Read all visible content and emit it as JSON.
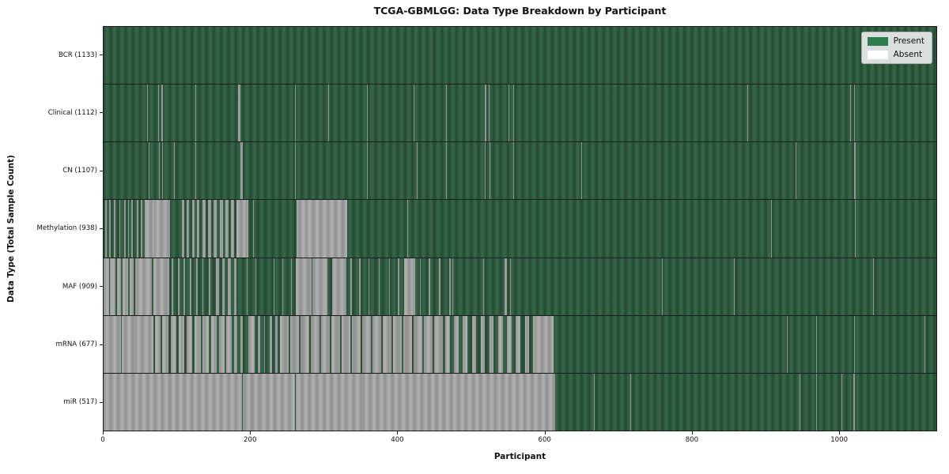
{
  "chart_data": {
    "type": "heatmap",
    "title": "TCGA-GBMLGG: Data Type Breakdown by Participant",
    "xlabel": "Participant",
    "ylabel": "Data Type (Total Sample Count)",
    "x_ticks": [
      0,
      200,
      400,
      600,
      800,
      1000
    ],
    "x_max": 1133,
    "n_participants": 1133,
    "grid": false,
    "colors": {
      "present": "#2e7d50",
      "absent": "#ffffff"
    },
    "legend": {
      "position": "upper right",
      "items": [
        {
          "label": "Present",
          "color": "#2e7d50"
        },
        {
          "label": "Absent",
          "color": "#ffffff"
        }
      ]
    },
    "rows": [
      {
        "name": "BCR",
        "label": "BCR (1133)",
        "present_count": 1133,
        "absent_ranges": []
      },
      {
        "name": "Clinical",
        "label": "Clinical (1112)",
        "present_count": 1112,
        "absent_ranges": [
          [
            59,
            60
          ],
          [
            74,
            75
          ],
          [
            79,
            81
          ],
          [
            92,
            93
          ],
          [
            125,
            126
          ],
          [
            183,
            186
          ],
          [
            260,
            261
          ],
          [
            306,
            307
          ],
          [
            358,
            359
          ],
          [
            422,
            423
          ],
          [
            466,
            467
          ],
          [
            519,
            521
          ],
          [
            524,
            525
          ],
          [
            551,
            552
          ],
          [
            557,
            558
          ],
          [
            616,
            617
          ],
          [
            876,
            877
          ],
          [
            941,
            942
          ],
          [
            1016,
            1017
          ],
          [
            1021,
            1022
          ]
        ]
      },
      {
        "name": "CN",
        "label": "CN (1107)",
        "present_count": 1107,
        "absent_ranges": [
          [
            61,
            62
          ],
          [
            75,
            76
          ],
          [
            80,
            81
          ],
          [
            96,
            97
          ],
          [
            125,
            126
          ],
          [
            186,
            189
          ],
          [
            260,
            261
          ],
          [
            304,
            305
          ],
          [
            358,
            359
          ],
          [
            426,
            427
          ],
          [
            466,
            467
          ],
          [
            519,
            520
          ],
          [
            525,
            526
          ],
          [
            557,
            558
          ],
          [
            650,
            651
          ],
          [
            942,
            943
          ],
          [
            1021,
            1023
          ]
        ]
      },
      {
        "name": "Methylation",
        "label": "Methylation (938)",
        "present_count": 938,
        "absent_ranges": [
          [
            2,
            4
          ],
          [
            8,
            10
          ],
          [
            14,
            16
          ],
          [
            21,
            23
          ],
          [
            28,
            30
          ],
          [
            33,
            34
          ],
          [
            38,
            40
          ],
          [
            45,
            47
          ],
          [
            51,
            53
          ],
          [
            56,
            90
          ],
          [
            106,
            110
          ],
          [
            113,
            116
          ],
          [
            120,
            124
          ],
          [
            127,
            130
          ],
          [
            134,
            139
          ],
          [
            142,
            146
          ],
          [
            150,
            154
          ],
          [
            158,
            163
          ],
          [
            166,
            170
          ],
          [
            173,
            178
          ],
          [
            181,
            197
          ],
          [
            203,
            204
          ],
          [
            247,
            248
          ],
          [
            262,
            331
          ],
          [
            413,
            414
          ],
          [
            908,
            909
          ],
          [
            1022,
            1023
          ]
        ]
      },
      {
        "name": "MAF",
        "label": "MAF (909)",
        "present_count": 909,
        "absent_ranges": [
          [
            0,
            7
          ],
          [
            9,
            16
          ],
          [
            18,
            24
          ],
          [
            26,
            33
          ],
          [
            35,
            41
          ],
          [
            43,
            66
          ],
          [
            68,
            89
          ],
          [
            93,
            95
          ],
          [
            101,
            103
          ],
          [
            109,
            111
          ],
          [
            117,
            119
          ],
          [
            126,
            128
          ],
          [
            134,
            136
          ],
          [
            143,
            145
          ],
          [
            153,
            157
          ],
          [
            161,
            165
          ],
          [
            169,
            173
          ],
          [
            177,
            181
          ],
          [
            195,
            196
          ],
          [
            207,
            208
          ],
          [
            219,
            220
          ],
          [
            231,
            232
          ],
          [
            243,
            244
          ],
          [
            255,
            256
          ],
          [
            261,
            283
          ],
          [
            284,
            305
          ],
          [
            311,
            330
          ],
          [
            336,
            338
          ],
          [
            348,
            350
          ],
          [
            360,
            362
          ],
          [
            374,
            376
          ],
          [
            388,
            390
          ],
          [
            400,
            402
          ],
          [
            409,
            424
          ],
          [
            430,
            432
          ],
          [
            442,
            444
          ],
          [
            456,
            458
          ],
          [
            470,
            472
          ],
          [
            474,
            476
          ],
          [
            517,
            518
          ],
          [
            530,
            531
          ],
          [
            545,
            549
          ],
          [
            553,
            554
          ],
          [
            760,
            761
          ],
          [
            858,
            859
          ],
          [
            1047,
            1048
          ]
        ]
      },
      {
        "name": "mRNA",
        "label": "mRNA (677)",
        "present_count": 677,
        "absent_ranges": [
          [
            0,
            24
          ],
          [
            25,
            68
          ],
          [
            70,
            78
          ],
          [
            80,
            88
          ],
          [
            91,
            99
          ],
          [
            102,
            110
          ],
          [
            113,
            121
          ],
          [
            124,
            132
          ],
          [
            135,
            143
          ],
          [
            146,
            154
          ],
          [
            157,
            165
          ],
          [
            167,
            174
          ],
          [
            178,
            182
          ],
          [
            186,
            189
          ],
          [
            197,
            206
          ],
          [
            210,
            213
          ],
          [
            218,
            220
          ],
          [
            226,
            229
          ],
          [
            234,
            237
          ],
          [
            240,
            252
          ],
          [
            254,
            266
          ],
          [
            268,
            280
          ],
          [
            282,
            294
          ],
          [
            296,
            308
          ],
          [
            310,
            322
          ],
          [
            324,
            336
          ],
          [
            338,
            350
          ],
          [
            352,
            364
          ],
          [
            366,
            378
          ],
          [
            380,
            392
          ],
          [
            394,
            406
          ],
          [
            408,
            420
          ],
          [
            422,
            434
          ],
          [
            436,
            448
          ],
          [
            450,
            462
          ],
          [
            465,
            471
          ],
          [
            477,
            483
          ],
          [
            489,
            495
          ],
          [
            501,
            507
          ],
          [
            513,
            519
          ],
          [
            525,
            531
          ],
          [
            537,
            543
          ],
          [
            549,
            555
          ],
          [
            561,
            567
          ],
          [
            573,
            579
          ],
          [
            584,
            612
          ],
          [
            686,
            687
          ],
          [
            930,
            931
          ],
          [
            969,
            970
          ],
          [
            1021,
            1022
          ],
          [
            1117,
            1118
          ]
        ]
      },
      {
        "name": "miR",
        "label": "miR (517)",
        "present_count": 517,
        "absent_ranges": [
          [
            0,
            188
          ],
          [
            189,
            260
          ],
          [
            261,
            614
          ],
          [
            667,
            668
          ],
          [
            717,
            718
          ],
          [
            947,
            948
          ],
          [
            969,
            970
          ],
          [
            1004,
            1005
          ],
          [
            1020,
            1022
          ]
        ]
      }
    ]
  }
}
